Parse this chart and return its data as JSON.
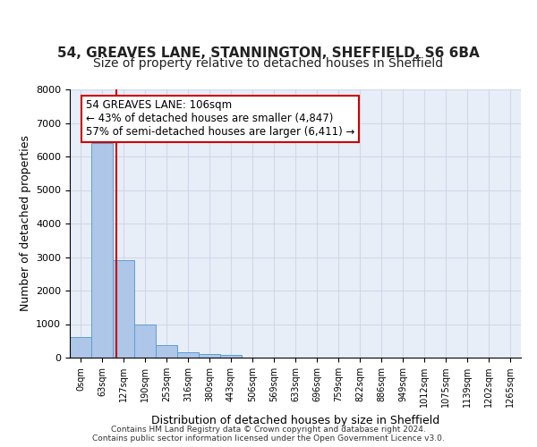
{
  "title1": "54, GREAVES LANE, STANNINGTON, SHEFFIELD, S6 6BA",
  "title2": "Size of property relative to detached houses in Sheffield",
  "xlabel": "Distribution of detached houses by size in Sheffield",
  "ylabel": "Number of detached properties",
  "bar_values": [
    620,
    6400,
    2900,
    1000,
    380,
    160,
    100,
    80,
    0,
    0,
    0,
    0,
    0,
    0,
    0,
    0,
    0,
    0,
    0,
    0,
    0
  ],
  "bar_labels": [
    "0sqm",
    "63sqm",
    "127sqm",
    "190sqm",
    "253sqm",
    "316sqm",
    "380sqm",
    "443sqm",
    "506sqm",
    "569sqm",
    "633sqm",
    "696sqm",
    "759sqm",
    "822sqm",
    "886sqm",
    "949sqm",
    "1012sqm",
    "1075sqm",
    "1139sqm",
    "1202sqm",
    "1265sqm"
  ],
  "bar_color": "#aec6e8",
  "bar_edgecolor": "#5a9fd4",
  "annotation_text": "54 GREAVES LANE: 106sqm\n← 43% of detached houses are smaller (4,847)\n57% of semi-detached houses are larger (6,411) →",
  "annotation_box_color": "#ffffff",
  "annotation_box_edgecolor": "#cc0000",
  "vline_color": "#cc0000",
  "ylim": [
    0,
    8000
  ],
  "yticks": [
    0,
    1000,
    2000,
    3000,
    4000,
    5000,
    6000,
    7000,
    8000
  ],
  "grid_color": "#d0d8e8",
  "background_color": "#e8eef8",
  "footer_text": "Contains HM Land Registry data © Crown copyright and database right 2024.\nContains public sector information licensed under the Open Government Licence v3.0.",
  "title1_fontsize": 11,
  "title2_fontsize": 10,
  "xlabel_fontsize": 9,
  "ylabel_fontsize": 9
}
